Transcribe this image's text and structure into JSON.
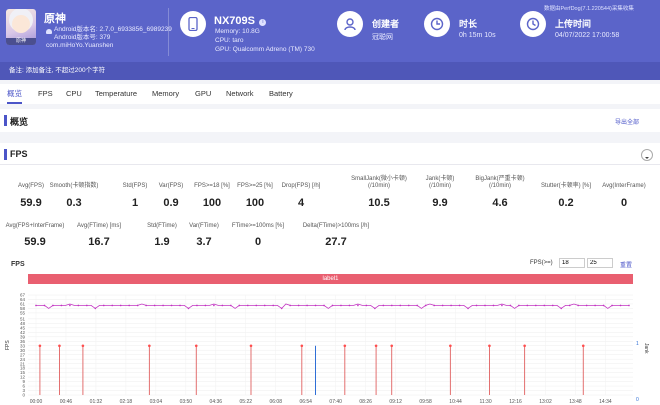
{
  "app": {
    "name": "原神",
    "android_version": "Android版本名: 2.7.0_6933856_6989239",
    "android_code": "Android版本号: 379",
    "package": "com.miHoYo.Yuanshen"
  },
  "device": {
    "model": "NX709S",
    "memory": "Memory: 10.8G",
    "cpu": "CPU: taro",
    "gpu": "GPU: Qualcomm Adreno (TM) 730"
  },
  "creator": {
    "label": "创建者",
    "value": "冠聪网"
  },
  "duration": {
    "label": "时长",
    "value": "0h 15m 10s"
  },
  "upload": {
    "label": "上传时间",
    "value": "04/07/2022 17:00:58"
  },
  "version_info": "数据由PerfDog(7.1.220544)采集收集",
  "remark": "备注: 添加备注, 不超过200个字符",
  "tabs": [
    "概览",
    "FPS",
    "CPU",
    "Temperature",
    "Memory",
    "GPU",
    "Network",
    "Battery"
  ],
  "overview": {
    "title": "概览",
    "export": "导出全部"
  },
  "fps_section": {
    "title": "FPS"
  },
  "metrics_row1": [
    {
      "label": "Avg(FPS)",
      "value": "59.9"
    },
    {
      "label": "Smooth(卡顿指数)",
      "value": "0.3"
    },
    {
      "label": "Std(FPS)",
      "value": "1"
    },
    {
      "label": "Var(FPS)",
      "value": "0.9"
    },
    {
      "label": "FPS>=18 [%]",
      "value": "100"
    },
    {
      "label": "FPS>=25 [%]",
      "value": "100"
    },
    {
      "label": "Drop(FPS) [/h]",
      "value": "4"
    },
    {
      "label": "SmallJank(微小卡顿)\n(/10min)",
      "value": "10.5"
    },
    {
      "label": "Jank(卡顿)\n(/10min)",
      "value": "9.9"
    },
    {
      "label": "BigJank(严重卡顿)\n(/10min)",
      "value": "4.6"
    },
    {
      "label": "Stutter(卡顿率) [%]",
      "value": "0.2"
    },
    {
      "label": "Avg(InterFrame)",
      "value": "0"
    }
  ],
  "metrics_row2": [
    {
      "label": "Avg(FPS+InterFrame)",
      "value": "59.9"
    },
    {
      "label": "Avg(FTime) [ms]",
      "value": "16.7"
    },
    {
      "label": "Std(FTime)",
      "value": "1.9"
    },
    {
      "label": "Var(FTime)",
      "value": "3.7"
    },
    {
      "label": "FTime>=100ms [%]",
      "value": "0"
    },
    {
      "label": "Delta(FTime)>100ms [/h]",
      "value": "27.7"
    }
  ],
  "chart_panel": {
    "title": "FPS",
    "fps_ge_label": "FPS(>=)",
    "input1": "18",
    "input2": "25",
    "reset": "重置",
    "label_bar": "label1",
    "y_axis_title": "FPS",
    "right_axis_title": "Jank"
  },
  "chart_data": {
    "type": "line",
    "title": "FPS",
    "xlabel": "",
    "ylabel": "FPS",
    "ylim": [
      0,
      67
    ],
    "y_ticks": [
      0,
      3,
      6,
      9,
      12,
      15,
      18,
      21,
      24,
      27,
      30,
      33,
      36,
      39,
      42,
      45,
      48,
      51,
      55,
      58,
      61,
      64,
      67
    ],
    "y_tick_labels": [
      "0",
      "3",
      "6",
      "9",
      "12",
      "15",
      "18",
      "21",
      "24",
      "27",
      "30",
      "33",
      "36",
      "39",
      "42",
      "45",
      "48",
      "51",
      "55",
      "58",
      "61",
      "64",
      "67"
    ],
    "x_ticks": [
      "00:00",
      "00:46",
      "01:32",
      "02:18",
      "03:04",
      "03:50",
      "04:36",
      "05:22",
      "06:08",
      "06:54",
      "07:40",
      "08:26",
      "09:12",
      "09:58",
      "10:44",
      "11:30",
      "12:16",
      "13:02",
      "13:48",
      "14:34"
    ],
    "right_axis": {
      "label": "Jank",
      "ticks": [
        "0",
        "1"
      ]
    },
    "fps_series": {
      "name": "FPS",
      "value": 60,
      "color": "#c233c2"
    },
    "jank_spikes_min": [
      0.1,
      0.6,
      1.2,
      2.9,
      4.1,
      5.5,
      6.8,
      7.9,
      8.7,
      9.1,
      10.6,
      11.6,
      12.5,
      14.0
    ],
    "jank_spike_value": 33,
    "blue_marker_min": 7.15,
    "grid": true
  }
}
